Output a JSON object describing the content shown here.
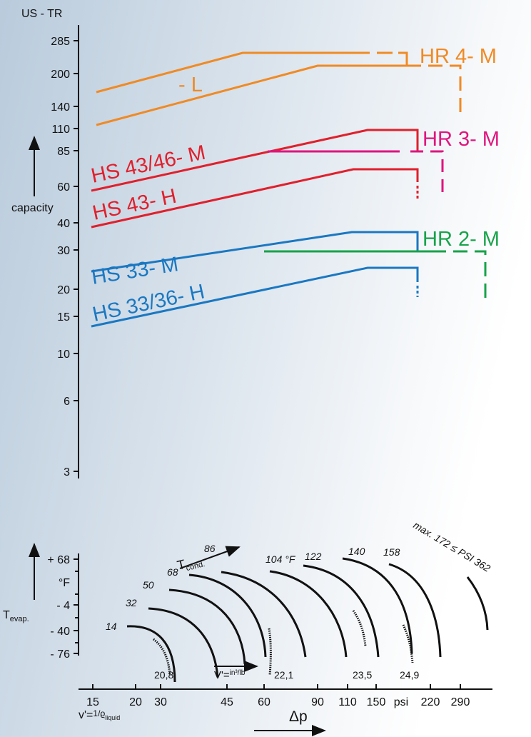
{
  "capacity_axis": {
    "unit": "US - TR",
    "label": "capacity",
    "ticks": [
      "285",
      "200",
      "140",
      "110",
      "85",
      "60",
      "40",
      "30",
      "20",
      "15",
      "10",
      "6",
      "3"
    ]
  },
  "series_labels": {
    "hr4": "HR 4- M",
    "l": "- L",
    "hr3": "HR 3- M",
    "hs4346": "HS 43/46- M",
    "hs43h": "HS 43- H",
    "hr2": "HR 2- M",
    "hs33": "HS 33- M",
    "hs3336": "HS 33/36- H"
  },
  "evap_axis": {
    "symbol": "T",
    "subscript": "evap.",
    "ticks": [
      "+ 68",
      "°F",
      "- 4",
      "- 40",
      "- 76"
    ]
  },
  "cond_label": {
    "symbol": "T",
    "subscript": "cond."
  },
  "arc_labels": [
    "14",
    "32",
    "50",
    "68",
    "86",
    "104 °F",
    "122",
    "140",
    "158",
    "max. 172 ≤ PSI 362"
  ],
  "volume_labels": [
    "20,8",
    "22,1",
    "23,5",
    "24,9"
  ],
  "volume_unit": {
    "prefix": "V'=",
    "unit": "in³/lb"
  },
  "dp_axis": {
    "ticks": [
      "15",
      "20",
      "30",
      "45",
      "60",
      "90",
      "110",
      "150",
      "psi",
      "220",
      "290"
    ],
    "label": "Δp",
    "formula": {
      "prefix": "v'=",
      "fraction": "1/ϱ",
      "subscript": "liquid"
    }
  }
}
